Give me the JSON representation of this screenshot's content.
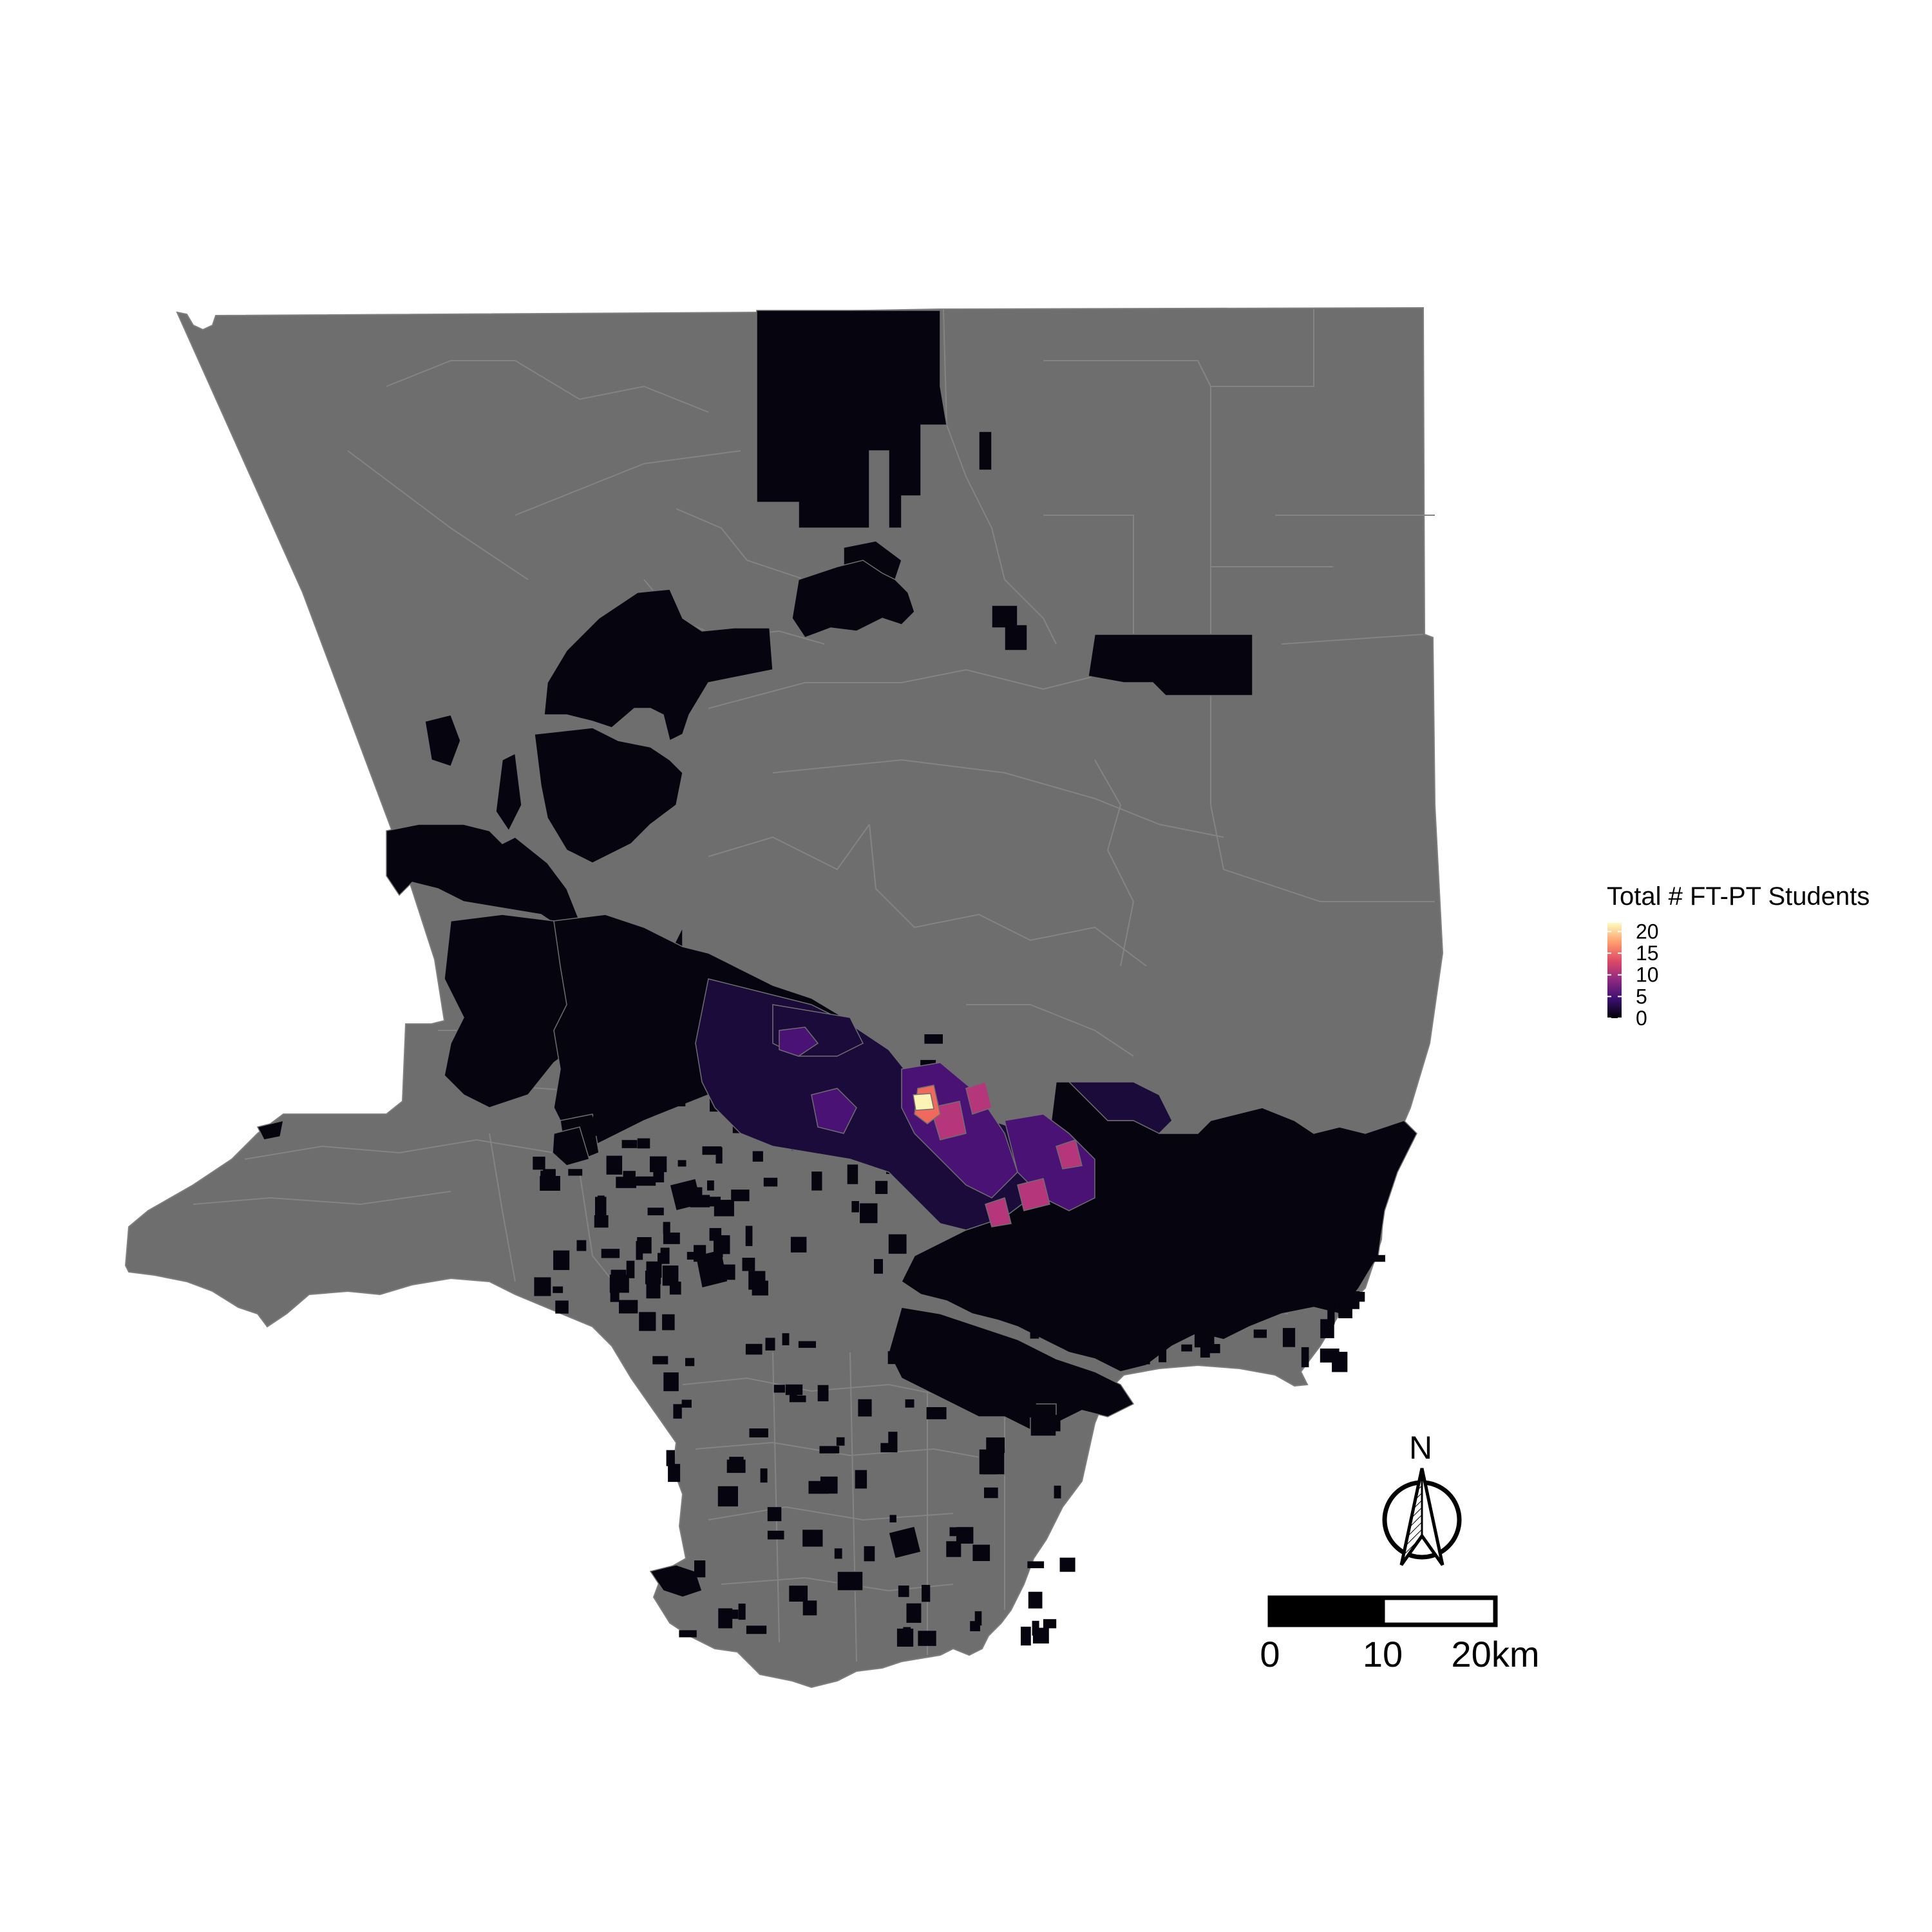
{
  "legend": {
    "title": "Total # FT-PT Students",
    "ticks": [
      "20",
      "15",
      "10",
      "5",
      "0"
    ],
    "tick_values": [
      20,
      15,
      10,
      5,
      0
    ],
    "min": 0,
    "max": 22,
    "palette": [
      "#000004",
      "#3b0f70",
      "#8c2981",
      "#de4968",
      "#fe9f6d",
      "#fcfdbf"
    ]
  },
  "colors": {
    "no_data_fill": "#6e6e6e",
    "tract_border": "#8a8a8a",
    "background": "#ffffff"
  },
  "north_arrow": {
    "label": "N"
  },
  "scale_bar": {
    "labels": [
      "0",
      "10",
      "20km"
    ]
  },
  "tract_values": {
    "hotspot_max": 22,
    "hotspot_high": 15,
    "mid": 7,
    "low": 3,
    "zero": 0
  }
}
